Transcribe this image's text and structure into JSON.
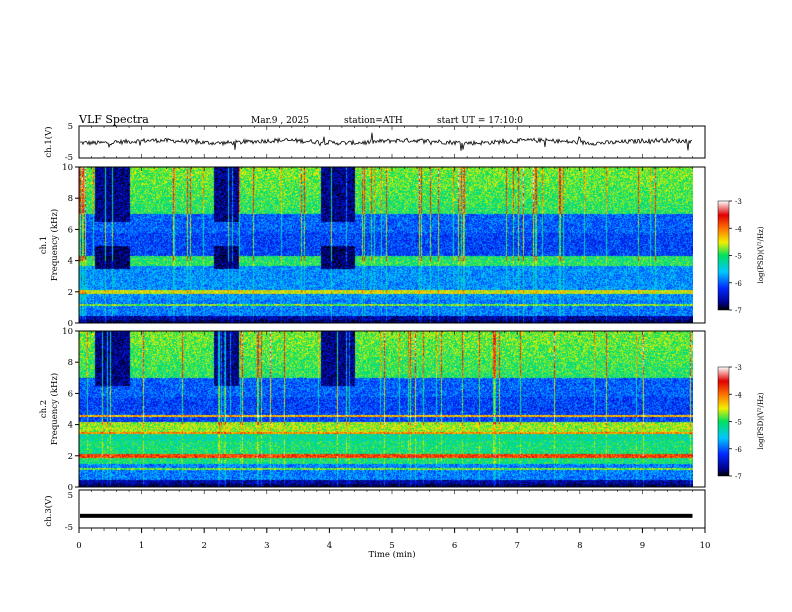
{
  "header": {
    "title": "VLF Spectra",
    "date": "Mar.9 , 2025",
    "station": "station=ATH",
    "start_ut": "start UT = 17:10:0"
  },
  "chart_data": [
    {
      "type": "line",
      "id": "ch1-waveform",
      "ylabel": "ch.1(V)",
      "ylim": [
        -5,
        5
      ],
      "yticks": [
        "5",
        "-5"
      ],
      "x_range": [
        0,
        9.8
      ],
      "approx_level": 0.1,
      "series": [
        {
          "color": "#000000"
        }
      ]
    },
    {
      "type": "heatmap",
      "id": "ch1-spectrogram",
      "ylabel": "ch.1\nFrequency (kHz)",
      "ylim": [
        0,
        10
      ],
      "yticks": [
        "0",
        "2",
        "4",
        "6",
        "8",
        "10"
      ],
      "x_range": [
        0,
        9.8
      ],
      "colorbar": {
        "label": "log(PSD)(V²/Hz)",
        "range": [
          -7,
          -3
        ],
        "ticks": [
          "-3",
          "-4",
          "-5",
          "-6",
          "-7"
        ]
      },
      "noise_bursts_min": [
        [
          0.25,
          0.8
        ],
        [
          2.15,
          2.55
        ],
        [
          3.85,
          4.4
        ]
      ]
    },
    {
      "type": "heatmap",
      "id": "ch2-spectrogram",
      "ylabel": "ch.2\nFrequency (kHz)",
      "ylim": [
        0,
        10
      ],
      "yticks": [
        "0",
        "2",
        "4",
        "6",
        "8",
        "10"
      ],
      "x_range": [
        0,
        9.8
      ],
      "colorbar": {
        "label": "log(PSD)(V²/Hz)",
        "range": [
          -7,
          -3
        ],
        "ticks": [
          "-3",
          "-4",
          "-5",
          "-6",
          "-7"
        ]
      },
      "noise_bursts_min": [
        [
          0.25,
          0.8
        ],
        [
          2.15,
          2.55
        ],
        [
          3.85,
          4.4
        ]
      ]
    },
    {
      "type": "line",
      "id": "ch3-waveform",
      "ylabel": "ch.3(V)",
      "ylim": [
        -5,
        5
      ],
      "yticks": [
        "5",
        "-5"
      ],
      "x_range": [
        0,
        9.8
      ],
      "approx_level": -1.8,
      "series": [
        {
          "color": "#000000"
        }
      ]
    }
  ],
  "xaxis": {
    "label": "Time (min)",
    "xlim": [
      0,
      10
    ],
    "ticks": [
      "0",
      "1",
      "2",
      "3",
      "4",
      "5",
      "6",
      "7",
      "8",
      "9",
      "10"
    ]
  }
}
